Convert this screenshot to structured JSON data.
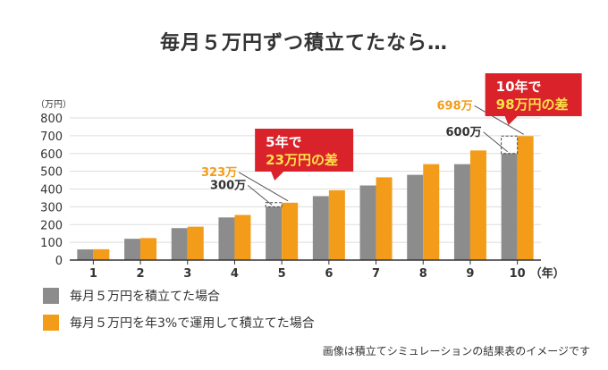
{
  "colors": {
    "no_invest": "#8c8c8c",
    "invest": "#f39c1a",
    "callout_bg": "#d9222a",
    "callout_hl": "#ffe14a",
    "grid": "#dddddd"
  },
  "title": "毎月５万円ずつ積立てたなら…",
  "chart_data": {
    "type": "bar",
    "yunit": "（万円）",
    "xunit": "（年）",
    "categories": [
      "1",
      "2",
      "3",
      "4",
      "5",
      "6",
      "7",
      "8",
      "9",
      "10"
    ],
    "ylim": [
      0,
      800
    ],
    "yticks": [
      0,
      100,
      200,
      300,
      400,
      500,
      600,
      700,
      800
    ],
    "grid": true,
    "series": [
      {
        "name": "毎月５万円を積立てた場合",
        "values": [
          60,
          120,
          180,
          240,
          300,
          360,
          420,
          480,
          540,
          600
        ]
      },
      {
        "name": "毎月５万円を年3%で運用して積立てた場合",
        "values": [
          61,
          124,
          188,
          254,
          323,
          393,
          466,
          540,
          617,
          698
        ]
      }
    ],
    "annotations": [
      {
        "category": "5",
        "series": 0,
        "text": "300万"
      },
      {
        "category": "5",
        "series": 1,
        "text": "323万"
      },
      {
        "category": "10",
        "series": 0,
        "text": "600万"
      },
      {
        "category": "10",
        "series": 1,
        "text": "698万"
      }
    ],
    "callouts": [
      {
        "category": "5",
        "line1": "5年で",
        "line2_hl": "23万円",
        "line2_rest": "の差"
      },
      {
        "category": "10",
        "line1": "10年で",
        "line2_hl": "98万円",
        "line2_rest": "の差"
      }
    ]
  },
  "legend": [
    {
      "label": "毎月５万円を積立てた場合"
    },
    {
      "label": "毎月５万円を年3%で運用して積立てた場合"
    }
  ],
  "note": "画像は積立てシミュレーションの結果表のイメージです"
}
